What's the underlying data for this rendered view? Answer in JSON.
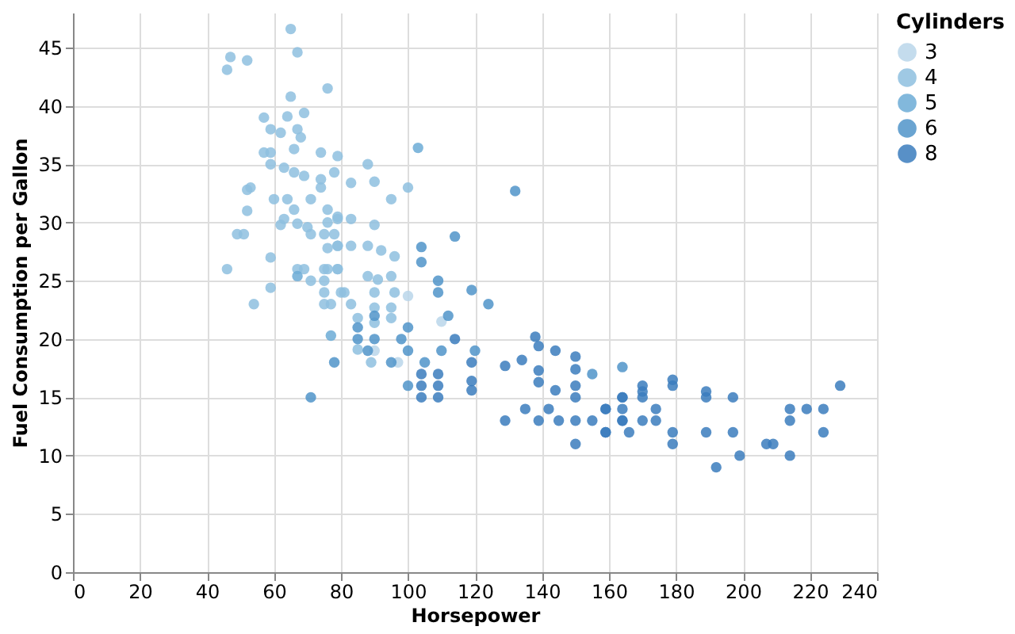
{
  "chart_data": {
    "type": "scatter",
    "xlabel": "Horsepower",
    "ylabel": "Fuel Consumption per Gallon",
    "legend_title": "Cylinders",
    "xlim": [
      0,
      240
    ],
    "xticks": [
      0,
      20,
      40,
      60,
      80,
      100,
      120,
      140,
      160,
      180,
      200,
      220,
      240
    ],
    "ylim": [
      0,
      48
    ],
    "yticks": [
      0,
      5,
      10,
      15,
      20,
      25,
      30,
      35,
      40,
      45
    ],
    "grid": true,
    "legend": "top right",
    "marker": "circle",
    "series": [
      {
        "name": "3",
        "color": "#bad6ea",
        "x": [
          90,
          97,
          110,
          100
        ],
        "values": [
          19.0,
          18.0,
          21.5,
          23.7
        ]
      },
      {
        "name": "4",
        "color": "#8ec0df",
        "x": [
          47,
          52,
          46,
          65,
          67,
          76,
          65,
          46,
          49,
          51,
          52,
          52,
          53,
          59,
          59,
          54,
          57,
          59,
          62,
          64,
          69,
          67,
          68,
          57,
          59,
          66,
          74,
          79,
          59,
          63,
          66,
          69,
          74,
          78,
          60,
          64,
          66,
          71,
          74,
          76,
          63,
          67,
          70,
          76,
          79,
          71,
          62,
          75,
          78,
          76,
          79,
          67,
          69,
          71,
          75,
          75,
          79,
          75,
          80,
          83,
          88,
          90,
          95,
          100,
          79,
          83,
          90,
          79,
          83,
          88,
          92,
          96,
          76,
          79,
          88,
          91,
          95,
          75,
          81,
          90,
          96,
          77,
          83,
          90,
          95,
          85,
          90,
          95,
          85,
          89
        ],
        "values": [
          44.2,
          43.9,
          43.1,
          46.6,
          44.6,
          41.5,
          40.8,
          26.0,
          29.0,
          29.0,
          31.0,
          32.8,
          33.0,
          27.0,
          24.4,
          23.0,
          39.0,
          38.0,
          37.7,
          39.1,
          39.4,
          38.0,
          37.3,
          36.0,
          36.0,
          36.3,
          36.0,
          35.7,
          35.0,
          34.7,
          34.3,
          34.0,
          33.7,
          34.3,
          32.0,
          32.0,
          31.1,
          32.0,
          33.0,
          31.1,
          30.3,
          29.9,
          29.6,
          30.0,
          30.3,
          29.0,
          29.8,
          29.0,
          29.0,
          27.8,
          28.0,
          26.0,
          26.0,
          25.0,
          26.0,
          25.0,
          26.0,
          24.0,
          24.0,
          33.4,
          35.0,
          33.5,
          32.0,
          33.0,
          30.5,
          30.3,
          29.8,
          28.0,
          28.0,
          28.0,
          27.6,
          27.1,
          26.0,
          26.0,
          25.4,
          25.1,
          25.4,
          23.0,
          24.0,
          24.0,
          24.0,
          23.0,
          23.0,
          22.7,
          22.7,
          21.8,
          21.4,
          21.8,
          19.1,
          18.0
        ]
      },
      {
        "name": "5",
        "color": "#6cacd6",
        "x": [
          67,
          77,
          103
        ],
        "values": [
          25.4,
          20.3,
          36.4
        ]
      },
      {
        "name": "6",
        "color": "#5094c9",
        "x": [
          132,
          78,
          71,
          85,
          88,
          90,
          95,
          100,
          105,
          110,
          120,
          100,
          85,
          90,
          98,
          100,
          112,
          114,
          104,
          104,
          109,
          109,
          164,
          155,
          124,
          119
        ],
        "values": [
          32.7,
          18.0,
          15.0,
          20.0,
          19.0,
          20.0,
          18.0,
          19.0,
          18.0,
          19.0,
          19.0,
          21.0,
          21.0,
          22.0,
          20.0,
          16.0,
          22.0,
          28.8,
          26.6,
          27.9,
          25.0,
          24.0,
          17.6,
          17.0,
          23.0,
          24.2
        ]
      },
      {
        "name": "8",
        "color": "#3b7cbd",
        "x": [
          229,
          192,
          199,
          214,
          207,
          209,
          224,
          214,
          214,
          219,
          224,
          197,
          197,
          189,
          189,
          189,
          179,
          179,
          179,
          179,
          174,
          174,
          170,
          170,
          170,
          170,
          164,
          164,
          164,
          166,
          159,
          159,
          138,
          139,
          144,
          134,
          129,
          139,
          150,
          150,
          139,
          144,
          150,
          150,
          142,
          135,
          129,
          139,
          145,
          150,
          155,
          159,
          159,
          150,
          164,
          164,
          119,
          119,
          119,
          109,
          109,
          109,
          104,
          104,
          104,
          114
        ],
        "values": [
          16.0,
          9.0,
          10.0,
          10.0,
          11.0,
          11.0,
          12.0,
          13.0,
          14.0,
          14.0,
          14.0,
          15.0,
          12.0,
          15.5,
          15.0,
          12.0,
          16.5,
          16.0,
          12.0,
          11.0,
          14.0,
          13.0,
          16.0,
          15.5,
          15.0,
          13.0,
          14.0,
          13.0,
          15.0,
          12.0,
          14.0,
          12.0,
          20.2,
          19.4,
          19.0,
          18.2,
          17.7,
          17.3,
          18.5,
          17.4,
          16.3,
          15.6,
          16.0,
          15.0,
          14.0,
          14.0,
          13.0,
          13.0,
          13.0,
          13.0,
          13.0,
          14.0,
          12.0,
          11.0,
          15.0,
          13.0,
          16.4,
          15.6,
          18.0,
          16.0,
          15.0,
          17.0,
          16.0,
          15.0,
          17.0,
          20.0
        ]
      }
    ]
  }
}
